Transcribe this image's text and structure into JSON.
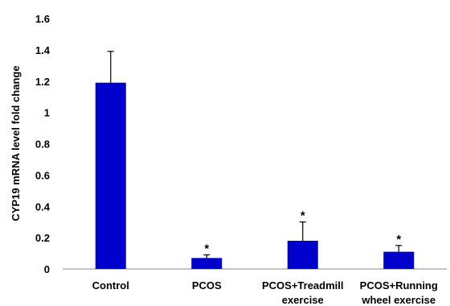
{
  "chart_data": {
    "type": "bar",
    "title": "",
    "xlabel": "",
    "ylabel": "CYP19 mRNA level fold change",
    "ylim": [
      0,
      1.6
    ],
    "yticks": [
      "0",
      "0.2",
      "0.4",
      "0.6",
      "0.8",
      "1",
      "1.2",
      "1.4",
      "1.6"
    ],
    "grid": false,
    "legend": "none",
    "categories": [
      [
        "Control"
      ],
      [
        "PCOS"
      ],
      [
        "PCOS+Treadmill",
        "exercise"
      ],
      [
        "PCOS+Running",
        "wheel exercise"
      ]
    ],
    "values": [
      1.19,
      0.07,
      0.18,
      0.11
    ],
    "errors": [
      0.2,
      0.02,
      0.12,
      0.04
    ],
    "significance": [
      "",
      "*",
      "*",
      "*"
    ],
    "bar_color": "#0000CC",
    "axis_color": "#888888"
  }
}
